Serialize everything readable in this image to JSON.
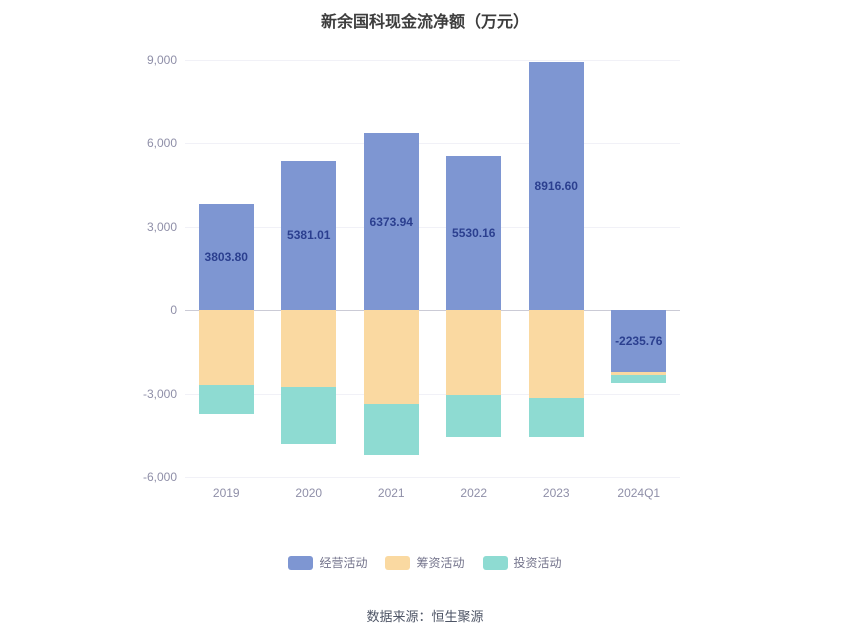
{
  "title": "新余国科现金流净额（万元）",
  "footer": "数据来源：恒生聚源",
  "colors": {
    "title_text": "#3d3d3d",
    "axis_text": "#8f8fa8",
    "zero_line": "#cbcbd6",
    "grid_line": "#f1f1f7",
    "bar_label_text": "#2b3f8f",
    "legend_text": "#74748c",
    "footer_text": "#4e5566",
    "operating_blue": "#7e96d2",
    "financing_orange": "#fad9a1",
    "investing_teal": "#8edbd2"
  },
  "chart_data": {
    "type": "bar",
    "stacked": true,
    "title": "新余国科现金流净额（万元）",
    "categories": [
      "2019",
      "2020",
      "2021",
      "2022",
      "2023",
      "2024Q1"
    ],
    "series": [
      {
        "name": "经营活动",
        "color": "#7e96d2",
        "values": [
          3803.8,
          5381.01,
          6373.94,
          5530.16,
          8916.6,
          -2235.76
        ],
        "labels": [
          "3803.80",
          "5381.01",
          "6373.94",
          "5530.16",
          "8916.60",
          "-2235.76"
        ]
      },
      {
        "name": "筹资活动",
        "color": "#fad9a1",
        "values": [
          -2700,
          -2750,
          -3380,
          -3060,
          -3170,
          -100
        ]
      },
      {
        "name": "投资活动",
        "color": "#8edbd2",
        "values": [
          -1050,
          -2050,
          -1840,
          -1510,
          -1400,
          -280
        ]
      }
    ],
    "xlabel": "",
    "ylabel": "",
    "ylim": [
      -6000,
      9000
    ],
    "yticks": [
      {
        "value": 9000,
        "label": "9,000"
      },
      {
        "value": 6000,
        "label": "6,000"
      },
      {
        "value": 3000,
        "label": "3,000"
      },
      {
        "value": 0,
        "label": "0"
      },
      {
        "value": -3000,
        "label": "-3,000"
      },
      {
        "value": -6000,
        "label": "-6,000"
      }
    ],
    "grid": false,
    "legend_position": "bottom",
    "legend": [
      "经营活动",
      "筹资活动",
      "投资活动"
    ]
  }
}
